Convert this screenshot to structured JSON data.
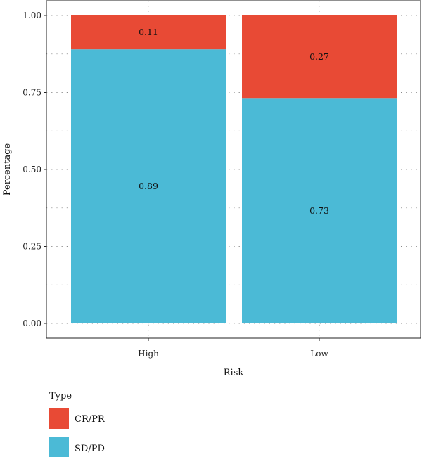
{
  "chart_data": {
    "type": "bar",
    "stacked": true,
    "categories": [
      "High",
      "Low"
    ],
    "series": [
      {
        "name": "SD/PD",
        "values": [
          0.89,
          0.73
        ],
        "color": "#4BBAD6"
      },
      {
        "name": "CR/PR",
        "values": [
          0.11,
          0.27
        ],
        "color": "#E84A35"
      }
    ],
    "data_labels": {
      "SD/PD": [
        "0.89",
        "0.73"
      ],
      "CR/PR": [
        "0.11",
        "0.27"
      ]
    },
    "title": "",
    "xlabel": "Risk",
    "ylabel": "Percentage",
    "ylim": [
      0,
      1
    ],
    "yticks": [
      0.0,
      0.25,
      0.5,
      0.75,
      1.0
    ],
    "ytick_labels": [
      "0.00",
      "0.25",
      "0.50",
      "0.75",
      "1.00"
    ],
    "grid": "dotted",
    "legend": {
      "title": "Type",
      "placement": "bottom-left",
      "entries": [
        {
          "label": "CR/PR",
          "color": "#E84A35"
        },
        {
          "label": "SD/PD",
          "color": "#4BBAD6"
        }
      ]
    }
  }
}
